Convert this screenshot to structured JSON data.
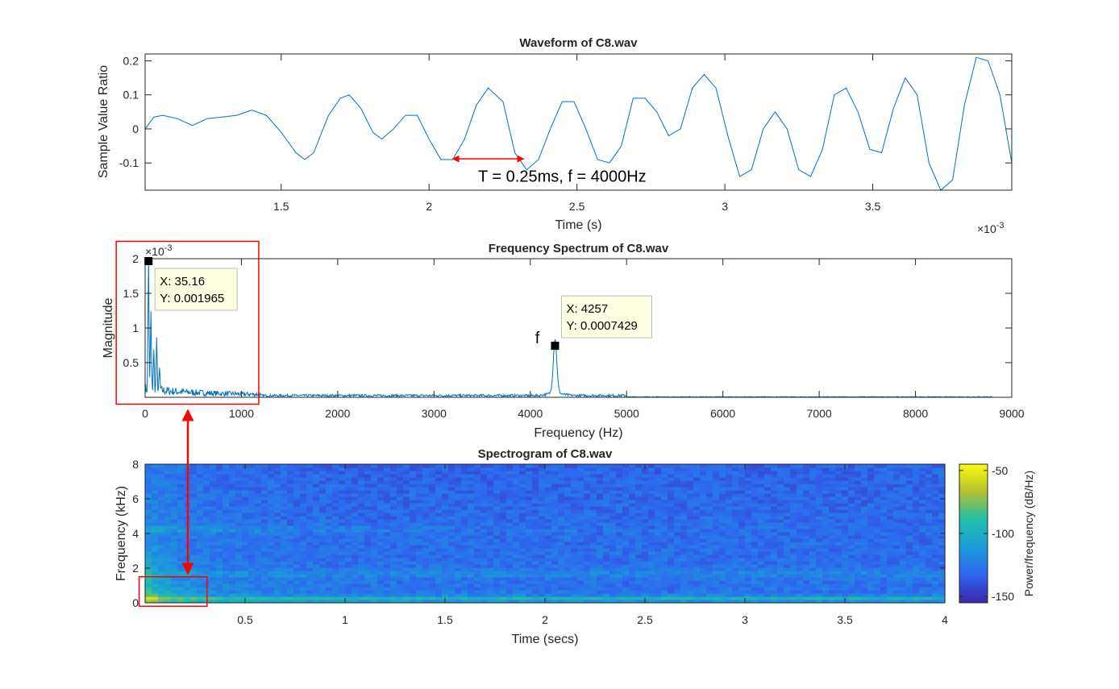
{
  "chart_data": [
    {
      "type": "line",
      "title": "Waveform of C8.wav",
      "xlabel": "Time (s)",
      "ylabel": "Sample Value Ratio",
      "x_exponent_label": "×10",
      "x_exponent_power": "-3",
      "xlim": [
        1.04,
        3.97
      ],
      "ylim": [
        -0.18,
        0.22
      ],
      "x_ticks": [
        1.5,
        2,
        2.5,
        3,
        3.5
      ],
      "x_tick_labels": [
        "1.5",
        "2",
        "2.5",
        "3",
        "3.5"
      ],
      "y_ticks": [
        -0.1,
        0,
        0.1,
        0.2
      ],
      "y_tick_labels": [
        "-0.1",
        "0",
        "0.1",
        "0.2"
      ],
      "color": "#0072BD",
      "series": [
        {
          "x": [
            1.04,
            1.07,
            1.1,
            1.15,
            1.2,
            1.25,
            1.3,
            1.35,
            1.4,
            1.45,
            1.5,
            1.55,
            1.58,
            1.61,
            1.66,
            1.7,
            1.73,
            1.77,
            1.81,
            1.84,
            1.88,
            1.92,
            1.96,
            2.0,
            2.04,
            2.08,
            2.12,
            2.16,
            2.2,
            2.25,
            2.29,
            2.33,
            2.37,
            2.41,
            2.45,
            2.49,
            2.53,
            2.57,
            2.61,
            2.65,
            2.69,
            2.73,
            2.77,
            2.81,
            2.85,
            2.89,
            2.93,
            2.97,
            3.01,
            3.05,
            3.09,
            3.13,
            3.17,
            3.21,
            3.25,
            3.29,
            3.33,
            3.37,
            3.41,
            3.45,
            3.49,
            3.53,
            3.57,
            3.61,
            3.65,
            3.69,
            3.73,
            3.77,
            3.81,
            3.85,
            3.89,
            3.93,
            3.97
          ],
          "y": [
            0.0,
            0.035,
            0.04,
            0.03,
            0.01,
            0.03,
            0.035,
            0.04,
            0.055,
            0.04,
            -0.01,
            -0.07,
            -0.09,
            -0.07,
            0.04,
            0.09,
            0.1,
            0.06,
            -0.01,
            -0.03,
            0.0,
            0.04,
            0.04,
            -0.03,
            -0.09,
            -0.09,
            -0.03,
            0.07,
            0.12,
            0.08,
            -0.07,
            -0.12,
            -0.09,
            0.0,
            0.08,
            0.08,
            0.0,
            -0.09,
            -0.1,
            -0.05,
            0.09,
            0.09,
            0.05,
            -0.02,
            0.0,
            0.12,
            0.16,
            0.12,
            -0.02,
            -0.14,
            -0.12,
            0.0,
            0.05,
            0.0,
            -0.12,
            -0.14,
            -0.06,
            0.1,
            0.12,
            0.05,
            -0.06,
            -0.07,
            0.06,
            0.15,
            0.1,
            -0.1,
            -0.18,
            -0.15,
            0.07,
            0.21,
            0.2,
            0.1,
            -0.1
          ]
        }
      ],
      "annotations": [
        {
          "text": "T = 0.25ms, f = 4000Hz",
          "x": 2.45,
          "y": -0.155,
          "arrow_from_x": 2.08,
          "arrow_to_x": 2.32,
          "arrow_y": -0.088
        }
      ]
    },
    {
      "type": "line",
      "title": "Frequency Spectrum of C8.wav",
      "xlabel": "Frequency (Hz)",
      "ylabel": "Magnitude",
      "y_exponent_label": "×10",
      "y_exponent_power": "-3",
      "xlim": [
        0,
        9000
      ],
      "ylim": [
        0,
        0.002
      ],
      "x_ticks": [
        0,
        1000,
        2000,
        3000,
        4000,
        5000,
        6000,
        7000,
        8000,
        9000
      ],
      "x_tick_labels": [
        "0",
        "1000",
        "2000",
        "3000",
        "4000",
        "5000",
        "6000",
        "7000",
        "8000",
        "9000"
      ],
      "y_ticks": [
        0.0005,
        0.001,
        0.0015,
        0.002
      ],
      "y_tick_labels": [
        "0.5",
        "1",
        "1.5",
        "2"
      ],
      "color": "#0072BD",
      "datatips": [
        {
          "x_label": "X: 35.16",
          "y_label": "Y: 0.001965",
          "x": 35.16,
          "y": 0.001965
        },
        {
          "x_label": "X: 4257",
          "y_label": "Y: 0.0007429",
          "x": 4257,
          "y": 0.0007429
        }
      ],
      "peak_label": {
        "text": "f",
        "x": 4257,
        "y": 0.0007429
      },
      "highlight_box": {
        "x": [
          -300,
          1180
        ],
        "y": [
          -0.0001,
          0.00225
        ]
      }
    },
    {
      "type": "heatmap",
      "title": "Spectrogram of C8.wav",
      "xlabel": "Time (secs)",
      "ylabel": "Frequency (kHz)",
      "xlim": [
        0,
        4
      ],
      "ylim": [
        0,
        8
      ],
      "x_ticks": [
        0.5,
        1,
        1.5,
        2,
        2.5,
        3,
        3.5,
        4
      ],
      "x_tick_labels": [
        "0.5",
        "1",
        "1.5",
        "2",
        "2.5",
        "3",
        "3.5",
        "4"
      ],
      "y_ticks": [
        0,
        2,
        4,
        6,
        8
      ],
      "y_tick_labels": [
        "0",
        "2",
        "4",
        "6",
        "8"
      ],
      "colorbar": {
        "label": "Power/frequency (dB/Hz)",
        "range": [
          -155,
          -45
        ],
        "ticks": [
          -50,
          -100,
          -150
        ],
        "tick_labels": [
          "-50",
          "-100",
          "-150"
        ]
      },
      "bands_khz": [
        0.25,
        1.7,
        4.25
      ],
      "highlight_box": {
        "x": [
          -0.03,
          0.31
        ],
        "y": [
          -0.2,
          1.5
        ]
      }
    }
  ]
}
